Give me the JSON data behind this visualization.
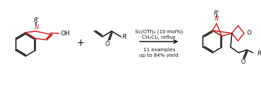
{
  "background_color": "#ffffff",
  "red_color": "#cc2222",
  "black_color": "#111111",
  "fig_width": 3.77,
  "fig_height": 1.27,
  "condition_line1": "Sc(OTf)₃ (10 mol%)",
  "condition_line2": "CH₂Cl₂, reflux",
  "condition_line3": "11 examples",
  "condition_line4": "up to 84% yield",
  "plus_sign": "+",
  "OH_label": "OH",
  "O_label": "O",
  "R_label": "R",
  "Rprime_label": "R'",
  "N_label": "N",
  "font_size_conditions": 5.2,
  "font_size_labels": 6.5,
  "font_size_atom": 6.0,
  "font_size_plus": 10,
  "lw_mol": 1.1
}
